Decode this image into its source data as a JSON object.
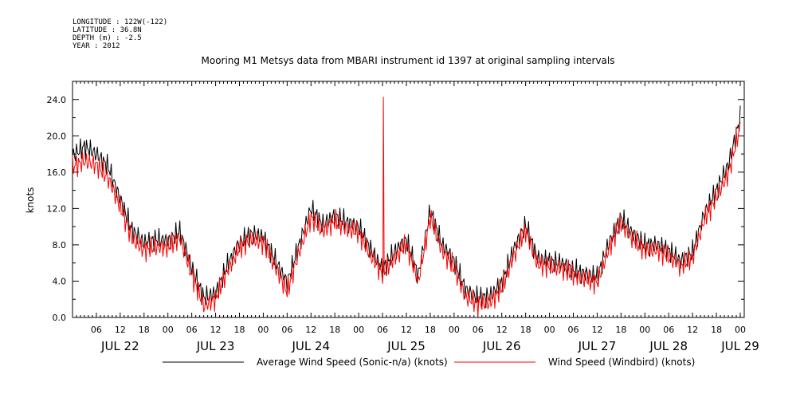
{
  "header": {
    "longitude": "LONGITUDE : 122W(-122)",
    "latitude": "LATITUDE : 36.8N",
    "depth": "DEPTH (m) : -2.5",
    "year": "YEAR : 2012"
  },
  "chart_data": {
    "type": "line",
    "title": "Mooring M1 Metsys data from MBARI instrument id 1397 at original sampling intervals",
    "ylabel": "knots",
    "xlabel": "",
    "ylim": [
      0,
      26
    ],
    "x_range_hours": [
      0,
      169
    ],
    "yticks": [
      "0.0",
      "4.0",
      "8.0",
      "12.0",
      "16.0",
      "20.0",
      "24.0"
    ],
    "xtick_labels": [
      "06",
      "12",
      "18",
      "00",
      "06",
      "12",
      "18",
      "00",
      "06",
      "12",
      "18",
      "00",
      "06",
      "12",
      "18",
      "00",
      "06",
      "12",
      "18",
      "00",
      "06",
      "12",
      "18",
      "00",
      "06",
      "12",
      "18",
      "00"
    ],
    "day_labels": [
      "JUL 22",
      "JUL 23",
      "JUL 24",
      "JUL 25",
      "JUL 26",
      "JUL 27",
      "JUL 28",
      "JUL 29"
    ],
    "grid": false,
    "legend_position": "bottom",
    "colors": {
      "series1": "#000000",
      "series2": "#ff0000"
    },
    "x_hours": [
      0,
      3,
      6,
      9,
      12,
      15,
      18,
      21,
      24,
      27,
      30,
      33,
      36,
      39,
      42,
      45,
      48,
      51,
      54,
      57,
      60,
      63,
      66,
      69,
      72,
      75,
      78,
      81,
      84,
      87,
      90,
      93,
      96,
      99,
      102,
      105,
      108,
      111,
      114,
      117,
      120,
      123,
      126,
      129,
      132,
      135,
      138,
      141,
      144,
      147,
      150,
      153,
      156,
      159,
      162,
      165,
      168
    ],
    "series": [
      {
        "name": "Average Wind Speed (Sonic-n/a) (knots)",
        "values": [
          17.8,
          18.8,
          18.0,
          16.6,
          13.0,
          9.6,
          8.2,
          8.6,
          8.4,
          9.5,
          5.5,
          2.2,
          2.6,
          5.8,
          8.2,
          9.2,
          8.8,
          6.3,
          3.8,
          8.0,
          12.0,
          10.2,
          11.2,
          10.5,
          10.0,
          7.5,
          5.3,
          7.2,
          8.6,
          4.6,
          11.8,
          8.0,
          6.2,
          3.0,
          2.2,
          2.3,
          3.8,
          7.5,
          10.2,
          6.5,
          6.2,
          6.0,
          5.2,
          4.8,
          4.5,
          8.2,
          11.0,
          9.2,
          8.0,
          8.0,
          7.4,
          6.2,
          7.2,
          11.5,
          14.0,
          16.8,
          22.0
        ]
      },
      {
        "name": "Wind Speed (Windbird) (knots)",
        "values": [
          16.6,
          17.2,
          16.8,
          15.3,
          12.2,
          8.6,
          7.4,
          7.8,
          7.7,
          8.8,
          4.7,
          1.3,
          2.0,
          5.2,
          7.6,
          8.6,
          8.2,
          5.6,
          2.8,
          7.2,
          11.0,
          9.5,
          10.6,
          9.8,
          9.3,
          6.8,
          4.8,
          6.6,
          8.0,
          4.0,
          11.0,
          7.3,
          5.5,
          2.2,
          1.5,
          1.6,
          3.2,
          6.8,
          9.6,
          5.8,
          5.6,
          5.4,
          4.7,
          4.2,
          3.8,
          7.6,
          10.4,
          8.6,
          7.4,
          7.4,
          6.7,
          5.6,
          6.6,
          10.8,
          13.2,
          15.8,
          21.0
        ]
      }
    ],
    "annotations": [
      {
        "series": 1,
        "x_hour": 78.2,
        "value": 24.3
      },
      {
        "series": 1,
        "x_hour": 78.3,
        "value": 15.5
      }
    ]
  }
}
